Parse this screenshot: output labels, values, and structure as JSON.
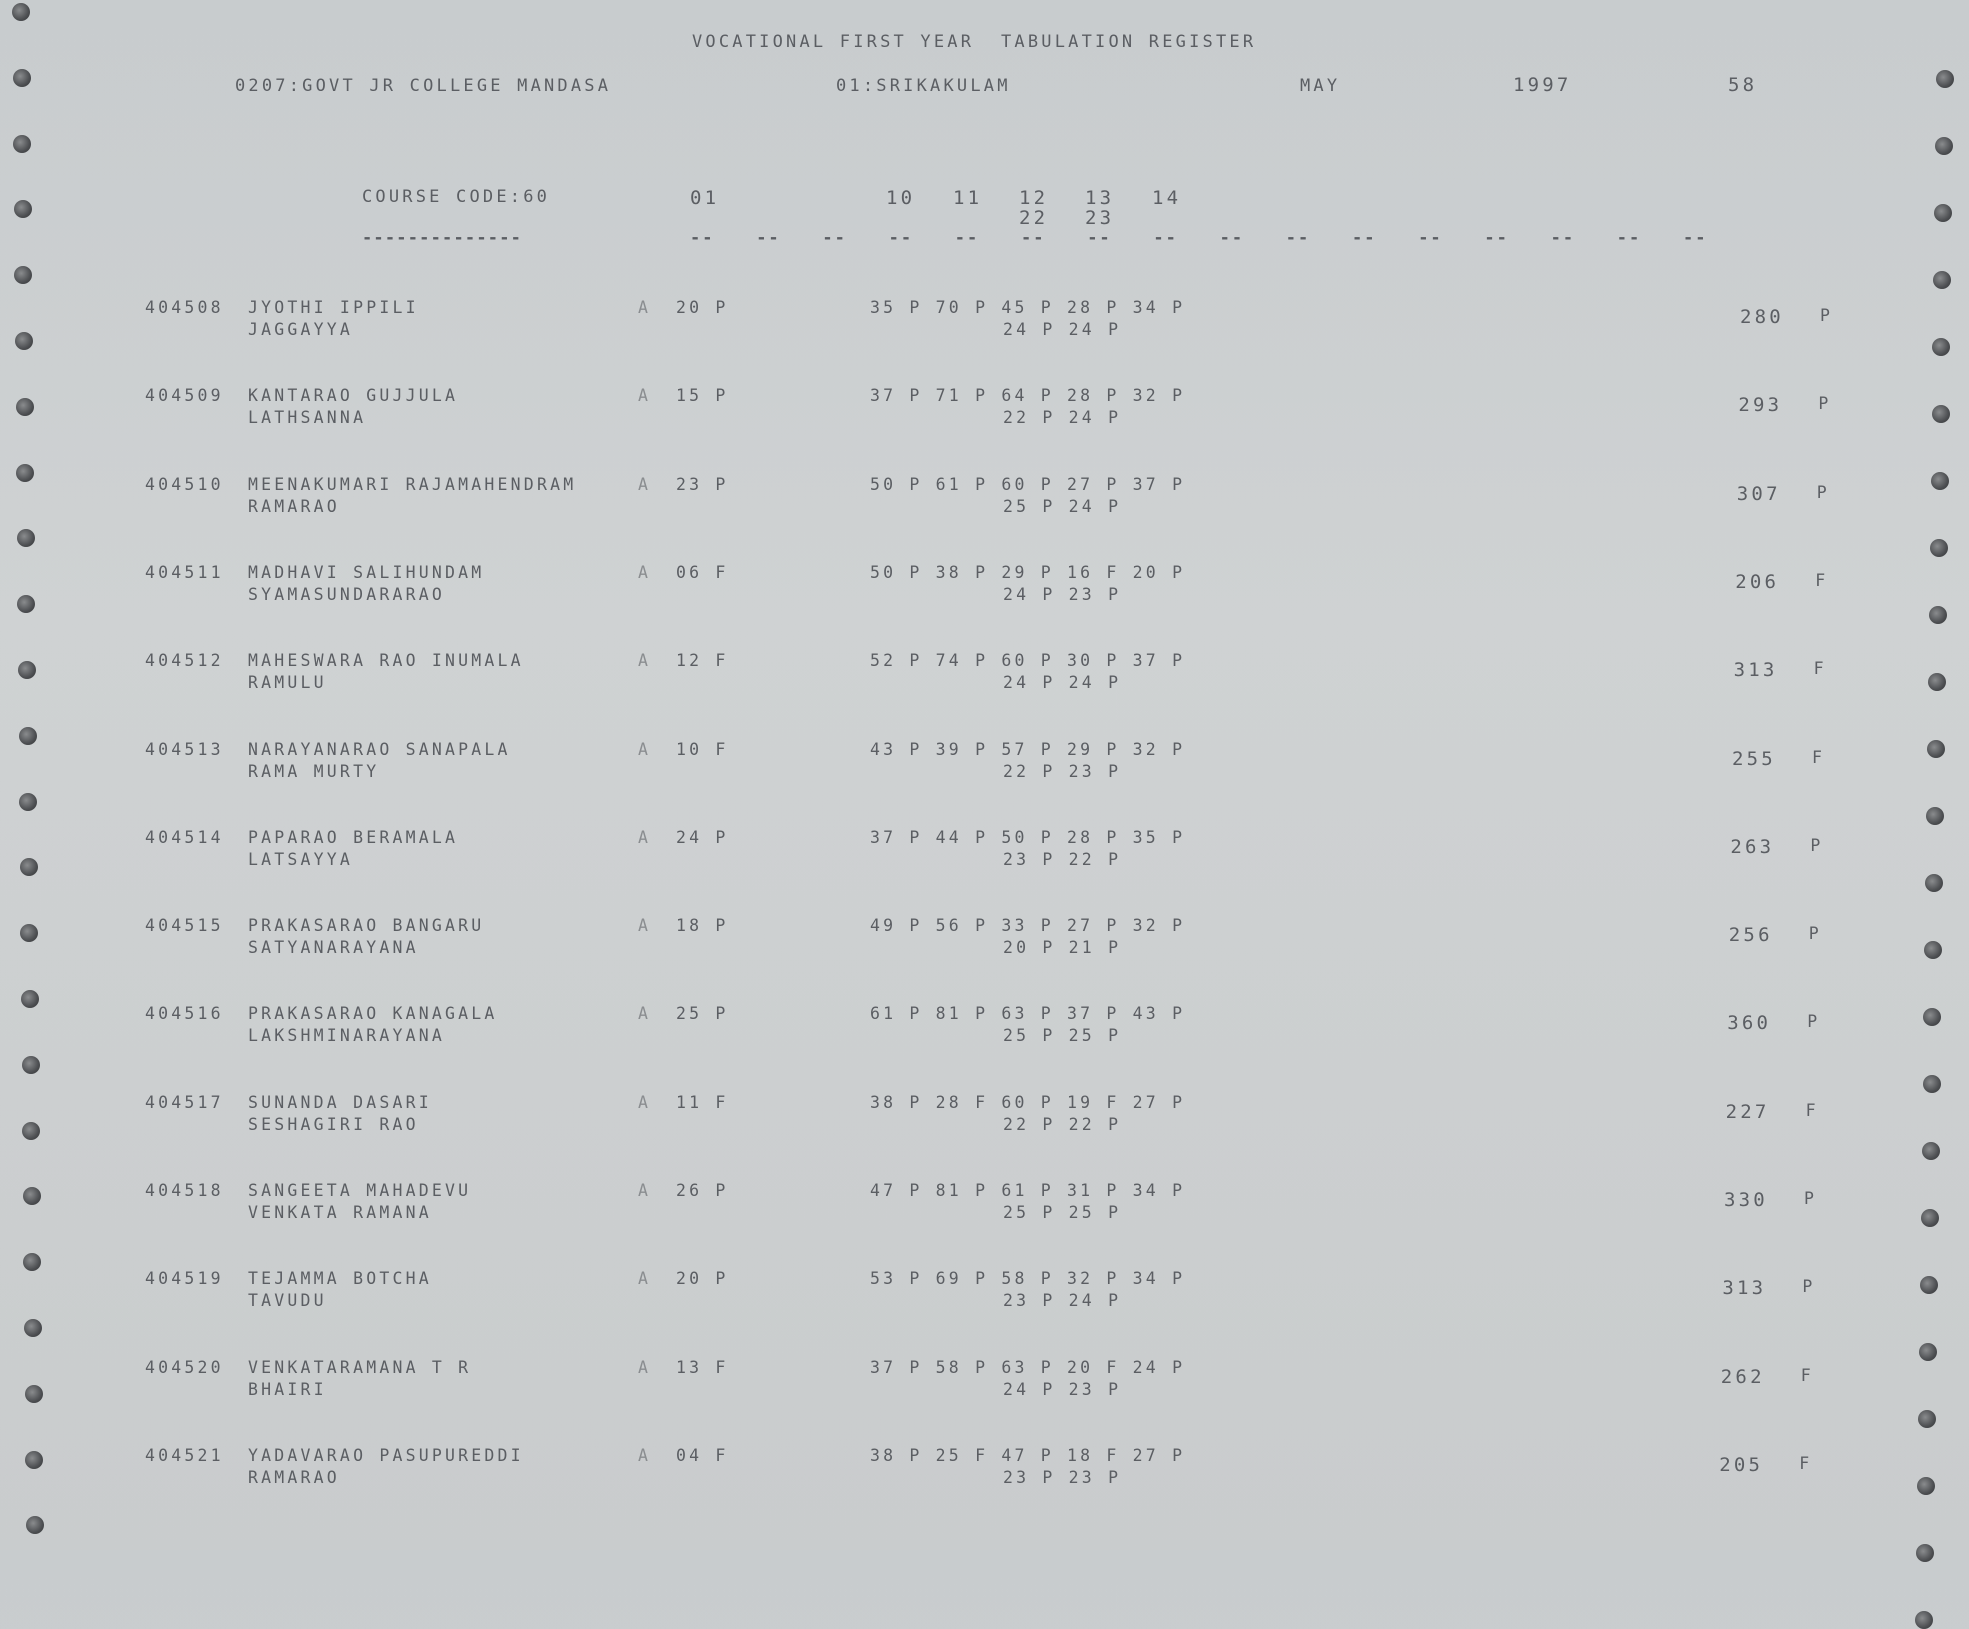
{
  "header": {
    "title": "VOCATIONAL FIRST YEAR  TABULATION REGISTER",
    "college": "0207:GOVT JR COLLEGE MANDASA",
    "district": "01:SRIKAKULAM",
    "month": "MAY",
    "year": "1997",
    "page": "58"
  },
  "columns": {
    "course_code": "COURSE CODE:60",
    "col_01": "01",
    "col_10": "10",
    "col_11": "11",
    "col_12": "12",
    "col_13": "13",
    "col_14": "14",
    "col_22": "22",
    "col_23": "23",
    "underline_long": "--------------",
    "underline_short": "--"
  },
  "students": [
    {
      "id": "404508",
      "name": "JYOTHI IPPILI",
      "father": "JAGGAYYA",
      "group": "A",
      "part1": "20 P",
      "marks1": "35 P 70 P 45 P 28 P 34 P",
      "marks2": "24 P 24 P",
      "total": "280",
      "result": "P"
    },
    {
      "id": "404509",
      "name": "KANTARAO GUJJULA",
      "father": "LATHSANNA",
      "group": "A",
      "part1": "15 P",
      "marks1": "37 P 71 P 64 P 28 P 32 P",
      "marks2": "22 P 24 P",
      "total": "293",
      "result": "P"
    },
    {
      "id": "404510",
      "name": "MEENAKUMARI RAJAMAHENDRAM",
      "father": "RAMARAO",
      "group": "A",
      "part1": "23 P",
      "marks1": "50 P 61 P 60 P 27 P 37 P",
      "marks2": "25 P 24 P",
      "total": "307",
      "result": "P"
    },
    {
      "id": "404511",
      "name": "MADHAVI SALIHUNDAM",
      "father": "SYAMASUNDARARAO",
      "group": "A",
      "part1": "06 F",
      "marks1": "50 P 38 P 29 P 16 F 20 P",
      "marks2": "24 P 23 P",
      "total": "206",
      "result": "F"
    },
    {
      "id": "404512",
      "name": "MAHESWARA RAO INUMALA",
      "father": "RAMULU",
      "group": "A",
      "part1": "12 F",
      "marks1": "52 P 74 P 60 P 30 P 37 P",
      "marks2": "24 P 24 P",
      "total": "313",
      "result": "F"
    },
    {
      "id": "404513",
      "name": "NARAYANARAO SANAPALA",
      "father": "RAMA MURTY",
      "group": "A",
      "part1": "10 F",
      "marks1": "43 P 39 P 57 P 29 P 32 P",
      "marks2": "22 P 23 P",
      "total": "255",
      "result": "F"
    },
    {
      "id": "404514",
      "name": "PAPARAO BERAMALA",
      "father": "LATSAYYA",
      "group": "A",
      "part1": "24 P",
      "marks1": "37 P 44 P 50 P 28 P 35 P",
      "marks2": "23 P 22 P",
      "total": "263",
      "result": "P"
    },
    {
      "id": "404515",
      "name": "PRAKASARAO BANGARU",
      "father": "SATYANARAYANA",
      "group": "A",
      "part1": "18 P",
      "marks1": "49 P 56 P 33 P 27 P 32 P",
      "marks2": "20 P 21 P",
      "total": "256",
      "result": "P"
    },
    {
      "id": "404516",
      "name": "PRAKASARAO KANAGALA",
      "father": "LAKSHMINARAYANA",
      "group": "A",
      "part1": "25 P",
      "marks1": "61 P 81 P 63 P 37 P 43 P",
      "marks2": "25 P 25 P",
      "total": "360",
      "result": "P"
    },
    {
      "id": "404517",
      "name": "SUNANDA DASARI",
      "father": "SESHAGIRI RAO",
      "group": "A",
      "part1": "11 F",
      "marks1": "38 P 28 F 60 P 19 F 27 P",
      "marks2": "22 P 22 P",
      "total": "227",
      "result": "F"
    },
    {
      "id": "404518",
      "name": "SANGEETA MAHADEVU",
      "father": "VENKATA RAMANA",
      "group": "A",
      "part1": "26 P",
      "marks1": "47 P 81 P 61 P 31 P 34 P",
      "marks2": "25 P 25 P",
      "total": "330",
      "result": "P"
    },
    {
      "id": "404519",
      "name": "TEJAMMA BOTCHA",
      "father": "TAVUDU",
      "group": "A",
      "part1": "20 P",
      "marks1": "53 P 69 P 58 P 32 P 34 P",
      "marks2": "23 P 24 P",
      "total": "313",
      "result": "P"
    },
    {
      "id": "404520",
      "name": "VENKATARAMANA T R",
      "father": "BHAIRI",
      "group": "A",
      "part1": "13 F",
      "marks1": "37 P 58 P 63 P 20 F 24 P",
      "marks2": "24 P 23 P",
      "total": "262",
      "result": "F"
    },
    {
      "id": "404521",
      "name": "YADAVARAO PASUPUREDDI",
      "father": "RAMARAO",
      "group": "A",
      "part1": "04 F",
      "marks1": "38 P 25 F 47 P 18 F 27 P",
      "marks2": "23 P 23 P",
      "total": "205",
      "result": "F"
    }
  ]
}
